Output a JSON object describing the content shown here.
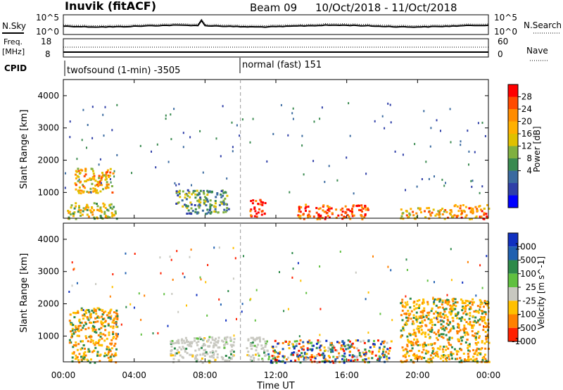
{
  "header": {
    "station": "Inuvik (fitACF)",
    "beam": "Beam 09",
    "date_range": "10/Oct/2018 - 11/Oct/2018"
  },
  "noise_panel": {
    "left_label": "N.Sky",
    "left_ticks": [
      "10^5",
      "10^0"
    ],
    "right_ticks": [
      "10^5",
      "10^0"
    ],
    "right_label": "N.Search"
  },
  "freq_panel": {
    "left_label_1": "Freq.",
    "left_label_2": "[MHz]",
    "left_ticks": [
      "18",
      "8"
    ],
    "right_ticks": [
      "60",
      "0"
    ],
    "right_label": "Nave"
  },
  "cpid": {
    "label": "CPID",
    "mode_1": "twofsound (1-min) -3505",
    "mode_2": "normal (fast) 151"
  },
  "x_axis": {
    "label": "Time UT",
    "ticks": [
      "00:00",
      "04:00",
      "08:00",
      "12:00",
      "16:00",
      "20:00",
      "00:00"
    ],
    "range_hours": [
      0,
      24
    ]
  },
  "chart_data": [
    {
      "type": "heatmap",
      "parameter": "Power",
      "colorbar_label": "Power [dB]",
      "colorbar_ticks": [
        "28",
        "24",
        "20",
        "16",
        "12",
        "8",
        "4"
      ],
      "colorbar_colors": [
        "#ff0000",
        "#ff4a00",
        "#ff8c00",
        "#ffb000",
        "#e0c000",
        "#80b040",
        "#3a8a50",
        "#3a6aa0",
        "#2f3fa8",
        "#0000ff"
      ],
      "ylabel": "Slant Range [km]",
      "yticks": [
        1000,
        2000,
        3000,
        4000
      ],
      "ylim": [
        200,
        4500
      ],
      "mode_change_hour": 10,
      "echo_regions": [
        {
          "t": [
            0.6,
            2.8
          ],
          "r": [
            1000,
            1800
          ],
          "level": 6
        },
        {
          "t": [
            0.2,
            3.0
          ],
          "r": [
            200,
            700
          ],
          "level": 5
        },
        {
          "t": [
            6.3,
            9.3
          ],
          "r": [
            350,
            1100
          ],
          "level": 3
        },
        {
          "t": [
            10.5,
            11.4
          ],
          "r": [
            250,
            800
          ],
          "level": 9
        },
        {
          "t": [
            13.2,
            17.2
          ],
          "r": [
            200,
            650
          ],
          "level": 8
        },
        {
          "t": [
            19.0,
            22.0
          ],
          "r": [
            200,
            550
          ],
          "level": 6
        },
        {
          "t": [
            22.0,
            24.0
          ],
          "r": [
            200,
            650
          ],
          "level": 7
        }
      ]
    },
    {
      "type": "heatmap",
      "parameter": "Velocity",
      "colorbar_label": "Velocity [m s^-1]",
      "colorbar_ticks": [
        "1000",
        "500",
        "100",
        "25",
        "-25",
        "-100",
        "-500",
        "-1000"
      ],
      "colorbar_colors": [
        "#1030c0",
        "#2060b0",
        "#2e8a4a",
        "#60c040",
        "#c8c8c0",
        "#ffc000",
        "#ff8000",
        "#ff2000"
      ],
      "ylabel": "Slant Range [km]",
      "yticks": [
        1000,
        2000,
        3000,
        4000
      ],
      "ylim": [
        200,
        4500
      ],
      "ground_scatter_color": "#c8c8c0",
      "mode_change_hour": 10,
      "echo_regions": [
        {
          "t": [
            0.3,
            3.0
          ],
          "r": [
            200,
            1900
          ],
          "class": "negative"
        },
        {
          "t": [
            6.0,
            9.6
          ],
          "r": [
            200,
            1000
          ],
          "class": "ground"
        },
        {
          "t": [
            10.3,
            11.5
          ],
          "r": [
            250,
            1000
          ],
          "class": "ground"
        },
        {
          "t": [
            11.5,
            18.5
          ],
          "r": [
            200,
            900
          ],
          "class": "mixed"
        },
        {
          "t": [
            19.0,
            24.0
          ],
          "r": [
            200,
            2200
          ],
          "class": "negative"
        }
      ]
    }
  ]
}
